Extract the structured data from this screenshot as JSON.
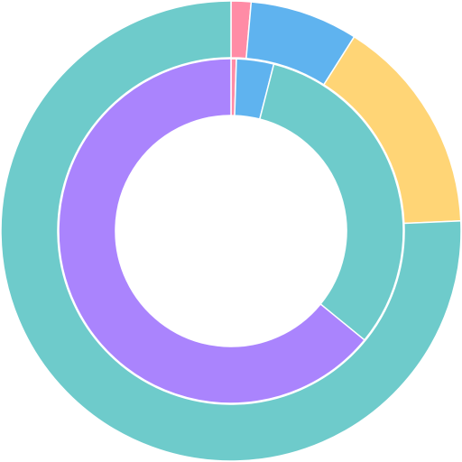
{
  "chart_data": [
    {
      "type": "doughnut",
      "values": [
        1.4,
        7.6,
        15.3,
        75.7
      ],
      "colors": [
        "#ff8ca6",
        "#5fb3ef",
        "#ffd576",
        "#6ecbcb"
      ]
    },
    {
      "type": "doughnut",
      "values": [
        0.5,
        3.5,
        31.9,
        64.1
      ],
      "colors": [
        "#ff8ca6",
        "#5fb3ef",
        "#6ecbcb",
        "#aa84fd"
      ]
    }
  ]
}
